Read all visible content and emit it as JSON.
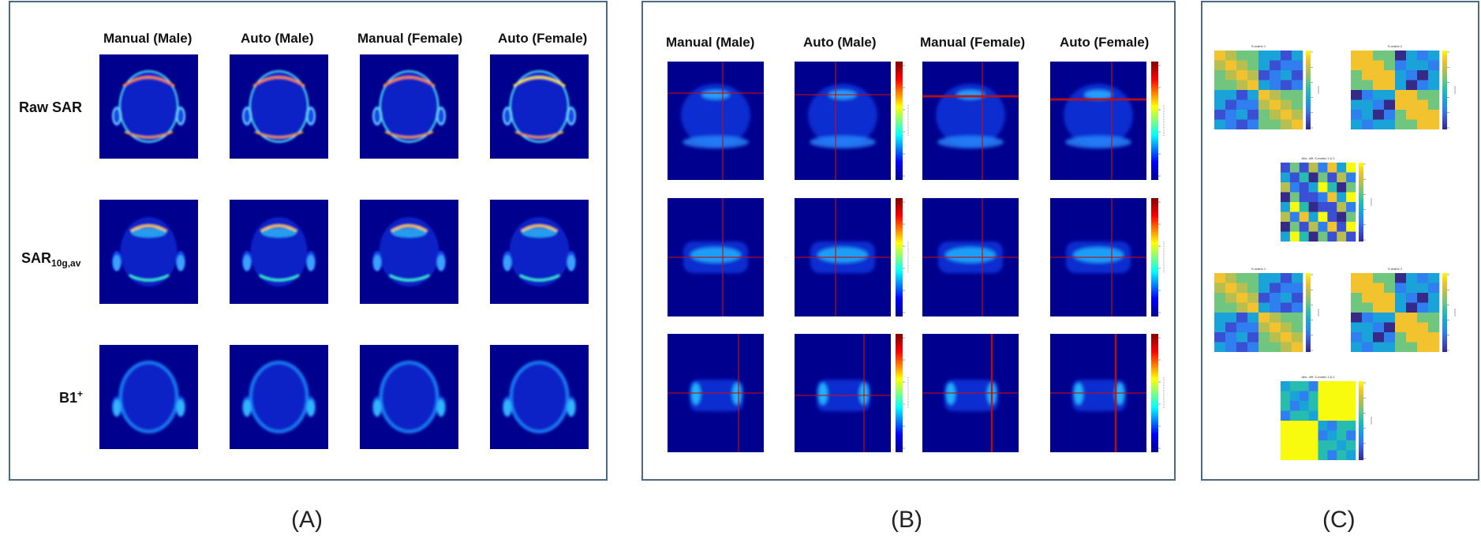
{
  "panelA": {
    "columns": [
      "Manual (Male)",
      "Auto (Male)",
      "Manual (Female)",
      "Auto (Female)"
    ],
    "rows": [
      {
        "label": "Raw SAR",
        "sub": ""
      },
      {
        "label": "SAR",
        "sub": "10g,av"
      },
      {
        "label": "B1",
        "sup": "+"
      }
    ]
  },
  "panelB": {
    "columns": [
      "Manual (Male)",
      "Auto (Male)",
      "Manual (Female)",
      "Auto (Female)"
    ]
  },
  "panelC": {
    "titles": [
      "S-matrix 1",
      "S-matrix 2",
      "Abs. diff. S-matrix 1 & 2",
      "S-matrix 1",
      "S-matrix 2",
      "Abs. diff. S-matrix 1 & 2"
    ]
  },
  "captions": [
    "(A)",
    "(B)",
    "(C)"
  ],
  "colors": {
    "jet_background": "#00008f",
    "panel_border": "#4a6a84"
  }
}
